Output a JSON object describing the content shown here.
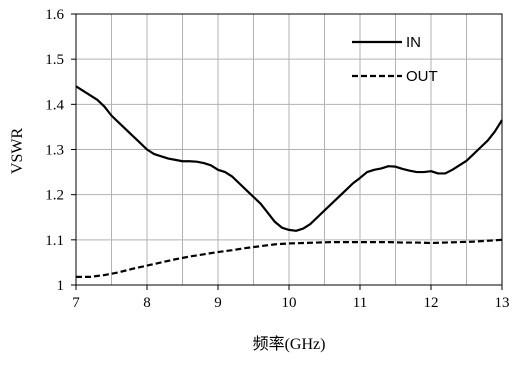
{
  "chart_data": {
    "type": "line",
    "xlabel": "频率(GHz)",
    "ylabel": "VSWR",
    "xlim": [
      7,
      13
    ],
    "ylim": [
      1,
      1.6
    ],
    "x_ticks": [
      "7",
      "8",
      "9",
      "10",
      "11",
      "12",
      "13"
    ],
    "y_ticks": [
      "1",
      "1.1",
      "1.2",
      "1.3",
      "1.4",
      "1.5",
      "1.6"
    ],
    "grid": true,
    "legend_position": "top-right",
    "series": [
      {
        "name": "IN",
        "style": "solid",
        "color": "#000000",
        "x": [
          7.0,
          7.1,
          7.2,
          7.3,
          7.4,
          7.5,
          7.6,
          7.7,
          7.8,
          7.9,
          8.0,
          8.1,
          8.2,
          8.3,
          8.4,
          8.5,
          8.6,
          8.7,
          8.8,
          8.9,
          9.0,
          9.1,
          9.2,
          9.3,
          9.4,
          9.5,
          9.6,
          9.7,
          9.8,
          9.9,
          10.0,
          10.1,
          10.2,
          10.3,
          10.4,
          10.5,
          10.6,
          10.7,
          10.8,
          10.9,
          11.0,
          11.1,
          11.2,
          11.3,
          11.4,
          11.5,
          11.6,
          11.7,
          11.8,
          11.9,
          12.0,
          12.1,
          12.2,
          12.3,
          12.4,
          12.5,
          12.6,
          12.7,
          12.8,
          12.9,
          13.0
        ],
        "y": [
          1.44,
          1.43,
          1.42,
          1.41,
          1.395,
          1.375,
          1.36,
          1.345,
          1.33,
          1.315,
          1.3,
          1.29,
          1.285,
          1.28,
          1.277,
          1.274,
          1.274,
          1.273,
          1.27,
          1.265,
          1.255,
          1.25,
          1.24,
          1.225,
          1.21,
          1.195,
          1.18,
          1.16,
          1.14,
          1.127,
          1.122,
          1.12,
          1.125,
          1.135,
          1.15,
          1.165,
          1.18,
          1.195,
          1.21,
          1.225,
          1.237,
          1.25,
          1.255,
          1.258,
          1.263,
          1.262,
          1.257,
          1.253,
          1.25,
          1.25,
          1.252,
          1.247,
          1.247,
          1.255,
          1.265,
          1.275,
          1.29,
          1.305,
          1.32,
          1.34,
          1.365
        ]
      },
      {
        "name": "OUT",
        "style": "dashed",
        "color": "#000000",
        "x": [
          7.0,
          7.2,
          7.4,
          7.6,
          7.8,
          8.0,
          8.2,
          8.4,
          8.6,
          8.8,
          9.0,
          9.2,
          9.4,
          9.6,
          9.8,
          10.0,
          10.2,
          10.4,
          10.6,
          10.8,
          11.0,
          11.2,
          11.4,
          11.6,
          11.8,
          12.0,
          12.2,
          12.4,
          12.6,
          12.8,
          13.0
        ],
        "y": [
          1.018,
          1.018,
          1.022,
          1.028,
          1.036,
          1.043,
          1.05,
          1.057,
          1.063,
          1.068,
          1.073,
          1.077,
          1.082,
          1.086,
          1.09,
          1.092,
          1.093,
          1.094,
          1.095,
          1.095,
          1.095,
          1.095,
          1.095,
          1.094,
          1.094,
          1.093,
          1.094,
          1.095,
          1.096,
          1.098,
          1.1
        ]
      }
    ]
  }
}
